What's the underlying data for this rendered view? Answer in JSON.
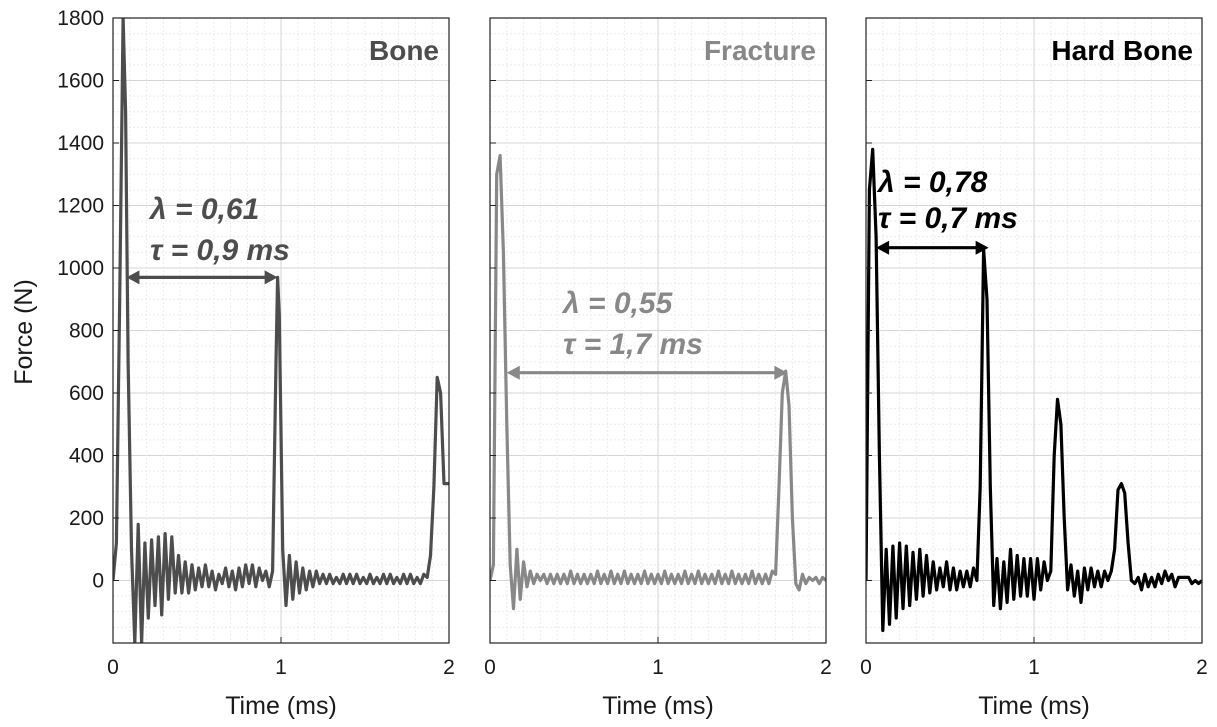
{
  "figure": {
    "ylabel": "Force (N)",
    "ylim": [
      -200,
      1800
    ],
    "yticks": [
      "1800",
      "1600",
      "1400",
      "1200",
      "1000",
      "800",
      "600",
      "400",
      "200",
      "0"
    ],
    "ytick_values": [
      1800,
      1600,
      1400,
      1200,
      1000,
      800,
      600,
      400,
      200,
      0
    ],
    "grid": true
  },
  "chart_data": [
    {
      "type": "line",
      "title": "Bone",
      "color": "#4d4d4d",
      "xlabel": "Time (ms)",
      "ylabel": "Force (N)",
      "xlim": [
        0,
        2
      ],
      "ylim": [
        -200,
        1800
      ],
      "xticks": [
        "0",
        "1",
        "2"
      ],
      "xtick_values": [
        0,
        1,
        2
      ],
      "annotation": {
        "line1": "λ = 0,61",
        "line2": "τ = 0,9 ms",
        "arrow": {
          "x_start": 0.08,
          "x_end": 0.98,
          "y": 970
        }
      },
      "series": [
        {
          "x": [
            0,
            0.02,
            0.04,
            0.06,
            0.075,
            0.09,
            0.11,
            0.13,
            0.15,
            0.17,
            0.19,
            0.21,
            0.23,
            0.25,
            0.27,
            0.29,
            0.31,
            0.33,
            0.35,
            0.37,
            0.39,
            0.41,
            0.43,
            0.45,
            0.47,
            0.49,
            0.51,
            0.53,
            0.55,
            0.57,
            0.59,
            0.61,
            0.63,
            0.65,
            0.67,
            0.69,
            0.71,
            0.73,
            0.75,
            0.77,
            0.79,
            0.81,
            0.83,
            0.85,
            0.87,
            0.89,
            0.91,
            0.93,
            0.95,
            0.97,
            0.98,
            0.99,
            1.01,
            1.03,
            1.05,
            1.07,
            1.09,
            1.11,
            1.13,
            1.15,
            1.17,
            1.19,
            1.21,
            1.23,
            1.25,
            1.27,
            1.29,
            1.31,
            1.33,
            1.35,
            1.37,
            1.39,
            1.41,
            1.43,
            1.45,
            1.47,
            1.49,
            1.51,
            1.53,
            1.55,
            1.57,
            1.59,
            1.61,
            1.63,
            1.65,
            1.67,
            1.69,
            1.71,
            1.73,
            1.75,
            1.77,
            1.79,
            1.81,
            1.83,
            1.85,
            1.87,
            1.89,
            1.91,
            1.93,
            1.95,
            1.97,
            1.99,
            2.0
          ],
          "y": [
            0,
            120,
            900,
            1800,
            1500,
            700,
            100,
            -200,
            180,
            -200,
            120,
            -120,
            130,
            -80,
            140,
            -110,
            150,
            -60,
            140,
            -40,
            80,
            -40,
            60,
            -40,
            50,
            -30,
            40,
            -20,
            50,
            -20,
            30,
            -30,
            20,
            -10,
            40,
            -20,
            30,
            -30,
            40,
            -20,
            50,
            -10,
            50,
            -20,
            40,
            0,
            30,
            -20,
            30,
            700,
            970,
            850,
            100,
            -80,
            80,
            -60,
            60,
            -40,
            40,
            -30,
            30,
            -20,
            30,
            -10,
            20,
            -10,
            20,
            -10,
            10,
            -10,
            20,
            -10,
            20,
            -10,
            20,
            -10,
            10,
            -10,
            20,
            -10,
            10,
            -10,
            20,
            -10,
            20,
            -10,
            10,
            -10,
            20,
            -10,
            20,
            -10,
            10,
            -10,
            20,
            10,
            80,
            300,
            650,
            600,
            310,
            310,
            310
          ]
        }
      ]
    },
    {
      "type": "line",
      "title": "Fracture",
      "color": "#888888",
      "xlabel": "Time (ms)",
      "ylabel": "",
      "xlim": [
        0,
        2
      ],
      "ylim": [
        -200,
        1800
      ],
      "xticks": [
        "0",
        "1",
        "2"
      ],
      "xtick_values": [
        0,
        1,
        2
      ],
      "annotation": {
        "line1": "λ = 0,55",
        "line2": "τ = 1,7 ms",
        "arrow": {
          "x_start": 0.1,
          "x_end": 1.77,
          "y": 665
        }
      },
      "series": [
        {
          "x": [
            0,
            0.02,
            0.04,
            0.06,
            0.08,
            0.1,
            0.12,
            0.14,
            0.16,
            0.18,
            0.2,
            0.22,
            0.24,
            0.26,
            0.28,
            0.3,
            0.32,
            0.34,
            0.36,
            0.38,
            0.4,
            0.42,
            0.44,
            0.46,
            0.48,
            0.5,
            0.52,
            0.54,
            0.56,
            0.58,
            0.6,
            0.62,
            0.64,
            0.66,
            0.68,
            0.7,
            0.72,
            0.74,
            0.76,
            0.78,
            0.8,
            0.82,
            0.84,
            0.86,
            0.88,
            0.9,
            0.92,
            0.94,
            0.96,
            0.98,
            1.0,
            1.02,
            1.04,
            1.06,
            1.08,
            1.1,
            1.12,
            1.14,
            1.16,
            1.18,
            1.2,
            1.22,
            1.24,
            1.26,
            1.28,
            1.3,
            1.32,
            1.34,
            1.36,
            1.38,
            1.4,
            1.42,
            1.44,
            1.46,
            1.48,
            1.5,
            1.52,
            1.54,
            1.56,
            1.58,
            1.6,
            1.62,
            1.64,
            1.66,
            1.68,
            1.7,
            1.72,
            1.74,
            1.76,
            1.78,
            1.8,
            1.82,
            1.84,
            1.86,
            1.88,
            1.9,
            1.92,
            1.94,
            1.96,
            1.98,
            2.0
          ],
          "y": [
            0,
            50,
            1300,
            1360,
            1050,
            500,
            50,
            -90,
            100,
            -60,
            60,
            -20,
            30,
            -10,
            20,
            0,
            20,
            -10,
            20,
            -10,
            20,
            -10,
            20,
            -10,
            30,
            -10,
            20,
            -10,
            20,
            -10,
            20,
            -10,
            30,
            -10,
            20,
            -10,
            30,
            -10,
            20,
            -10,
            30,
            -10,
            20,
            -10,
            20,
            -10,
            30,
            -10,
            20,
            -10,
            20,
            -10,
            30,
            -10,
            20,
            -10,
            20,
            -10,
            30,
            -10,
            20,
            -10,
            30,
            -10,
            20,
            -10,
            20,
            -10,
            30,
            -10,
            20,
            -10,
            30,
            -10,
            20,
            -10,
            20,
            -10,
            30,
            -10,
            20,
            -10,
            20,
            -10,
            30,
            20,
            300,
            600,
            670,
            560,
            200,
            -10,
            -30,
            20,
            -10,
            10,
            0,
            10,
            -10,
            10,
            0
          ]
        }
      ]
    },
    {
      "type": "line",
      "title": "Hard Bone",
      "color": "#000000",
      "xlabel": "Time (ms)",
      "ylabel": "",
      "xlim": [
        0,
        2
      ],
      "ylim": [
        -200,
        1800
      ],
      "xticks": [
        "0",
        "1",
        "2"
      ],
      "xtick_values": [
        0,
        1,
        2
      ],
      "annotation": {
        "line1": "λ = 0,78",
        "line2": "τ = 0,7 ms",
        "arrow": {
          "x_start": 0.06,
          "x_end": 0.73,
          "y": 1065
        }
      },
      "series": [
        {
          "x": [
            0,
            0.02,
            0.04,
            0.06,
            0.08,
            0.1,
            0.12,
            0.14,
            0.16,
            0.18,
            0.2,
            0.22,
            0.24,
            0.26,
            0.28,
            0.3,
            0.32,
            0.34,
            0.36,
            0.38,
            0.4,
            0.42,
            0.44,
            0.46,
            0.48,
            0.5,
            0.52,
            0.54,
            0.56,
            0.58,
            0.6,
            0.62,
            0.64,
            0.66,
            0.68,
            0.7,
            0.72,
            0.74,
            0.76,
            0.78,
            0.8,
            0.82,
            0.84,
            0.86,
            0.88,
            0.9,
            0.92,
            0.94,
            0.96,
            0.98,
            1.0,
            1.02,
            1.04,
            1.06,
            1.08,
            1.1,
            1.12,
            1.14,
            1.16,
            1.18,
            1.2,
            1.22,
            1.24,
            1.26,
            1.28,
            1.3,
            1.32,
            1.34,
            1.36,
            1.38,
            1.4,
            1.42,
            1.44,
            1.46,
            1.48,
            1.5,
            1.52,
            1.54,
            1.56,
            1.58,
            1.6,
            1.62,
            1.64,
            1.66,
            1.68,
            1.7,
            1.72,
            1.74,
            1.76,
            1.78,
            1.8,
            1.82,
            1.84,
            1.86,
            1.88,
            1.9,
            1.92,
            1.94,
            1.96,
            1.98,
            2.0
          ],
          "y": [
            0,
            1250,
            1380,
            1100,
            400,
            -160,
            100,
            -140,
            110,
            -120,
            120,
            -90,
            110,
            -80,
            90,
            -60,
            100,
            -50,
            80,
            -40,
            60,
            -30,
            40,
            -20,
            60,
            -30,
            40,
            -30,
            30,
            -20,
            30,
            -20,
            40,
            0,
            300,
            1060,
            900,
            300,
            -80,
            70,
            -90,
            60,
            -70,
            100,
            -60,
            80,
            -50,
            70,
            -50,
            70,
            -60,
            70,
            -30,
            60,
            0,
            30,
            400,
            580,
            500,
            200,
            -30,
            50,
            -50,
            30,
            -70,
            40,
            -30,
            40,
            -20,
            30,
            -20,
            30,
            0,
            30,
            100,
            290,
            310,
            280,
            120,
            0,
            -10,
            10,
            -30,
            20,
            -20,
            10,
            -20,
            20,
            -10,
            30,
            0,
            20,
            -20,
            10,
            10,
            10,
            10,
            -10,
            0,
            -10,
            0
          ]
        }
      ]
    }
  ]
}
